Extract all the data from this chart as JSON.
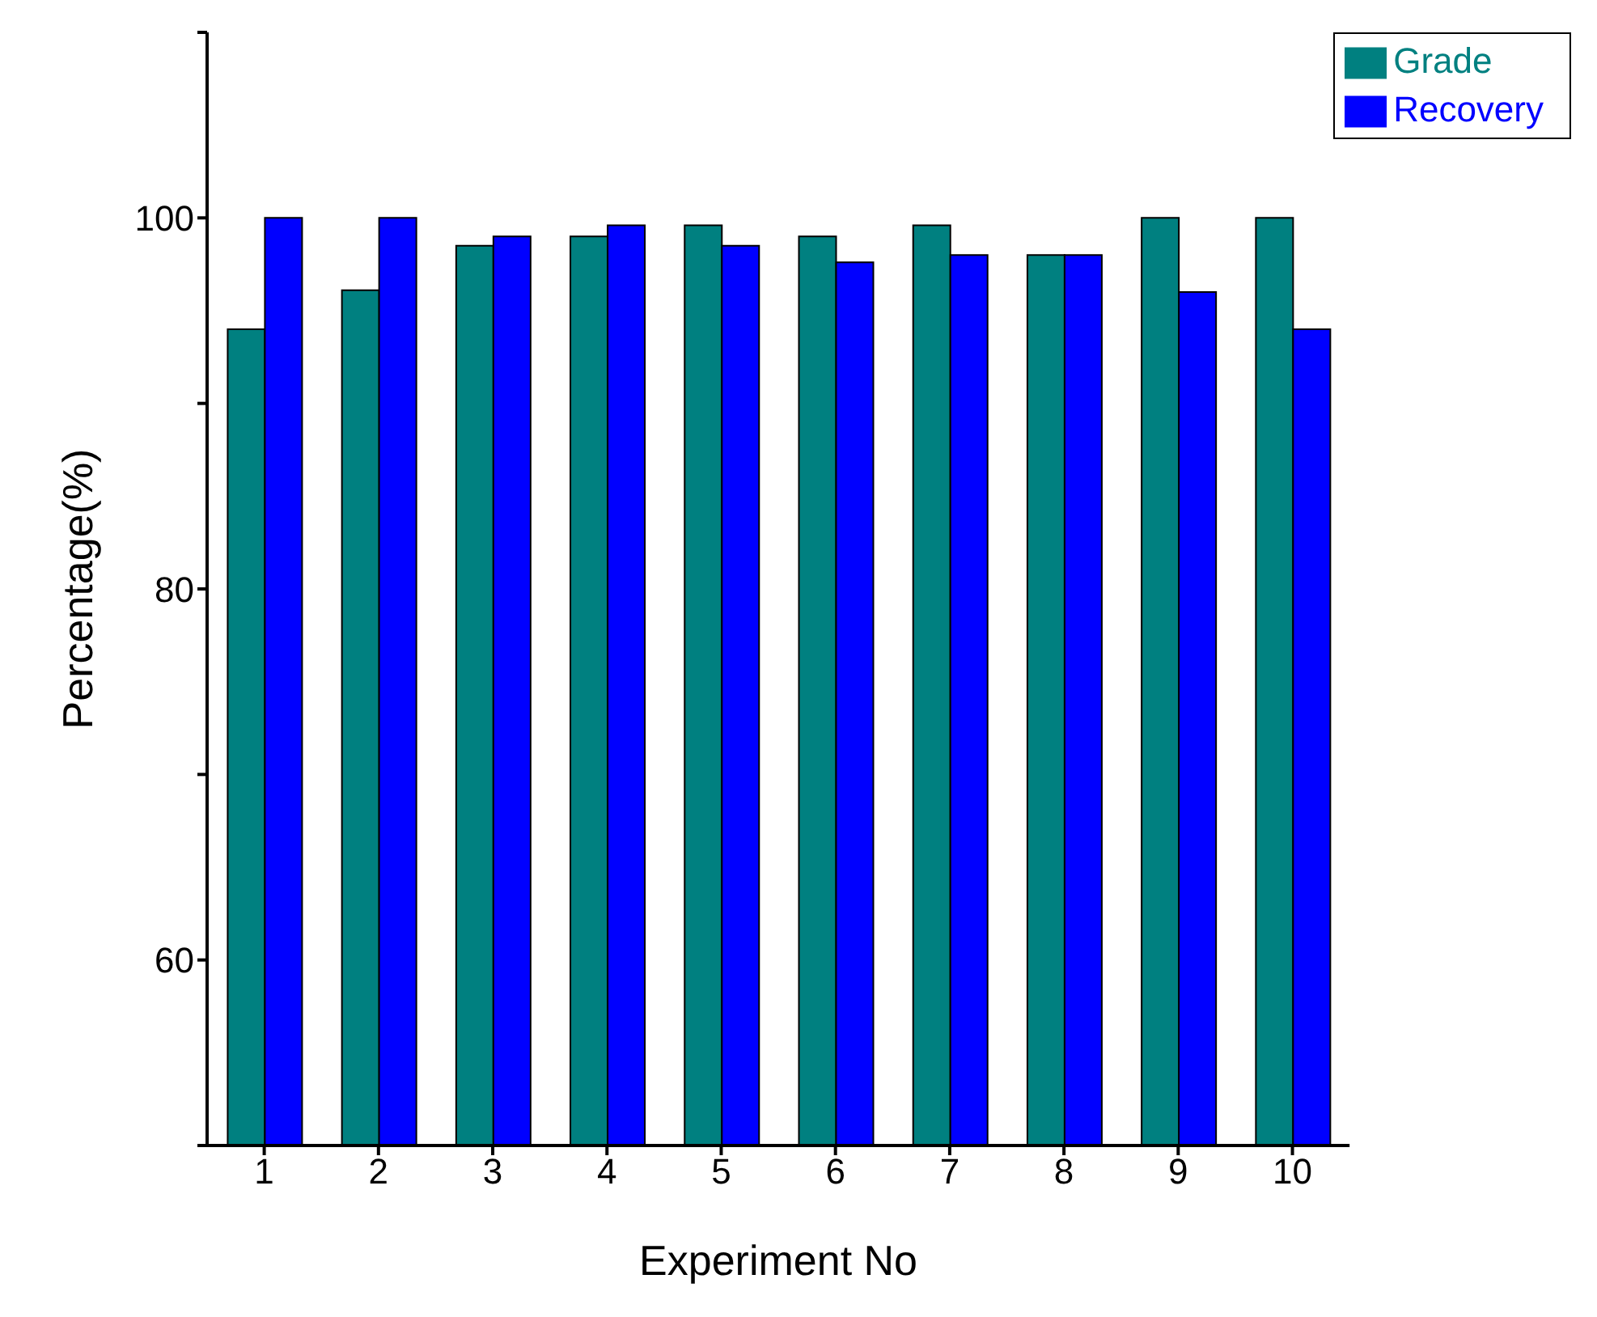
{
  "chart_data": {
    "type": "bar",
    "xlabel": "Experiment No",
    "ylabel": "Percentage(%)",
    "categories": [
      "1",
      "2",
      "3",
      "4",
      "5",
      "6",
      "7",
      "8",
      "9",
      "10"
    ],
    "series": [
      {
        "name": "Grade",
        "color": "#008080",
        "values": [
          94.0,
          96.1,
          98.5,
          99.0,
          99.6,
          99.0,
          99.6,
          98.0,
          100.0,
          100.0
        ]
      },
      {
        "name": "Recovery",
        "color": "#0000ff",
        "values": [
          100.0,
          100.0,
          99.0,
          99.6,
          98.5,
          97.6,
          98.0,
          98.0,
          96.0,
          94.0
        ]
      }
    ],
    "ylim": [
      50,
      110
    ],
    "yticks": [
      {
        "value": 50,
        "label": null
      },
      60,
      {
        "value": 70,
        "label": null
      },
      80,
      {
        "value": 90,
        "label": null
      },
      100,
      {
        "value": 110,
        "label": null
      }
    ],
    "grid": false,
    "legend": "top right"
  }
}
